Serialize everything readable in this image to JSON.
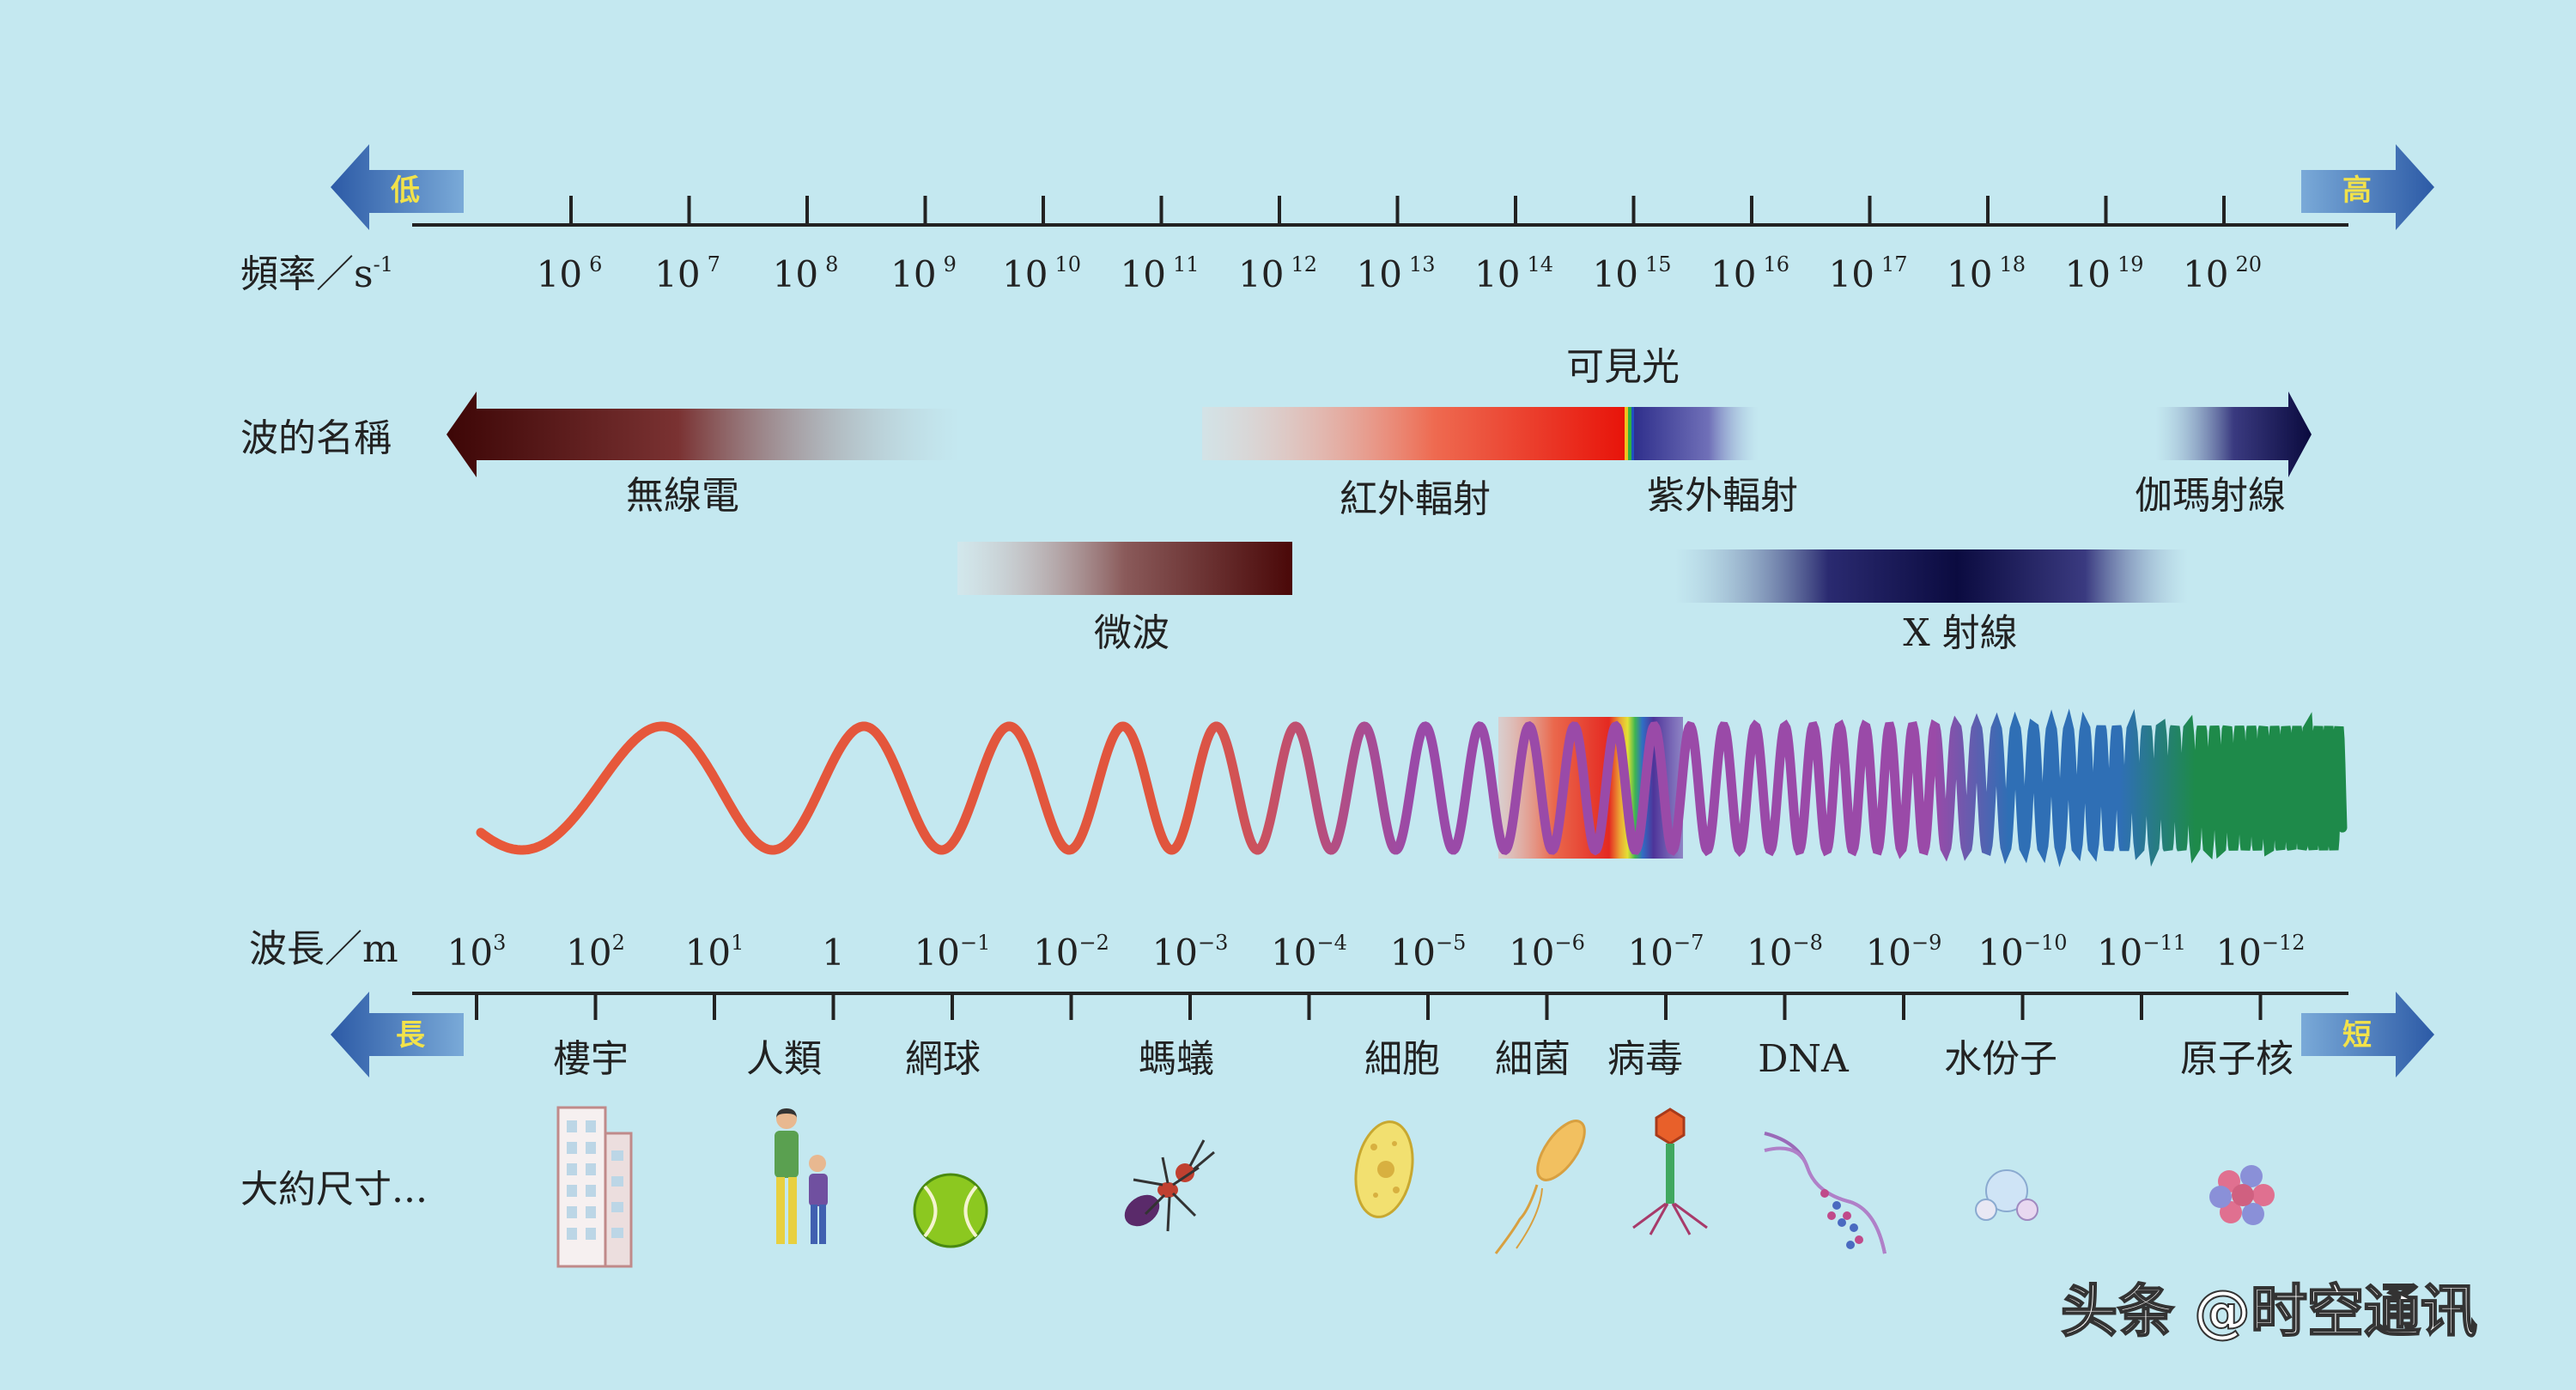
{
  "frequency": {
    "label": "頻率／s",
    "label_sup": "-1",
    "low_label": "低",
    "high_label": "高",
    "ticks": [
      {
        "base": "10",
        "exp": "6"
      },
      {
        "base": "10",
        "exp": "7"
      },
      {
        "base": "10",
        "exp": "8"
      },
      {
        "base": "10",
        "exp": "9"
      },
      {
        "base": "10",
        "exp": "10"
      },
      {
        "base": "10",
        "exp": "11"
      },
      {
        "base": "10",
        "exp": "12"
      },
      {
        "base": "10",
        "exp": "13"
      },
      {
        "base": "10",
        "exp": "14"
      },
      {
        "base": "10",
        "exp": "15"
      },
      {
        "base": "10",
        "exp": "16"
      },
      {
        "base": "10",
        "exp": "17"
      },
      {
        "base": "10",
        "exp": "18"
      },
      {
        "base": "10",
        "exp": "19"
      },
      {
        "base": "10",
        "exp": "20"
      }
    ]
  },
  "wave_names": {
    "label": "波的名稱",
    "visible_light": "可見光",
    "radio": "無線電",
    "infrared": "紅外輻射",
    "ultraviolet": "紫外輻射",
    "gamma": "伽瑪射線",
    "microwave": "微波",
    "xray": "X 射線"
  },
  "wavelength": {
    "label": "波長／m",
    "short_label": "短",
    "long_label": "長",
    "ticks": [
      {
        "base": "10",
        "exp": "3"
      },
      {
        "base": "10",
        "exp": "2"
      },
      {
        "base": "10",
        "exp": "1"
      },
      {
        "base": "1",
        "exp": ""
      },
      {
        "base": "10",
        "exp": "−1"
      },
      {
        "base": "10",
        "exp": "−2"
      },
      {
        "base": "10",
        "exp": "−3"
      },
      {
        "base": "10",
        "exp": "−4"
      },
      {
        "base": "10",
        "exp": "−5"
      },
      {
        "base": "10",
        "exp": "−6"
      },
      {
        "base": "10",
        "exp": "−7"
      },
      {
        "base": "10",
        "exp": "−8"
      },
      {
        "base": "10",
        "exp": "−9"
      },
      {
        "base": "10",
        "exp": "−10"
      },
      {
        "base": "10",
        "exp": "−11"
      },
      {
        "base": "10",
        "exp": "−12"
      }
    ]
  },
  "sizes": {
    "label": "大約尺寸...",
    "items": [
      {
        "name": "樓宇",
        "icon": "building-icon"
      },
      {
        "name": "人類",
        "icon": "people-icon"
      },
      {
        "name": "網球",
        "icon": "tennis-ball-icon"
      },
      {
        "name": "螞蟻",
        "icon": "ant-icon"
      },
      {
        "name": "細胞",
        "icon": "cell-icon"
      },
      {
        "name": "細菌",
        "icon": "bacterium-icon"
      },
      {
        "name": "病毒",
        "icon": "virus-icon"
      },
      {
        "name": "DNA",
        "icon": "dna-icon"
      },
      {
        "name": "水份子",
        "icon": "water-molecule-icon"
      },
      {
        "name": "原子核",
        "icon": "nucleus-icon"
      }
    ]
  },
  "watermark": "头条 @时空通讯",
  "colors": {
    "background": "#c4e8f0",
    "arrow": "#3e6fb5",
    "arrow_text": "#f2e24a",
    "radio_dark": "#4a0b0b",
    "infrared": "#e62a18",
    "uv": "#3b3b9a",
    "gamma_dark": "#101048",
    "wave_red": "#e8583a",
    "wave_purple": "#9a4aa8",
    "wave_blue": "#2f6fb5",
    "wave_green": "#1e8a4a"
  }
}
